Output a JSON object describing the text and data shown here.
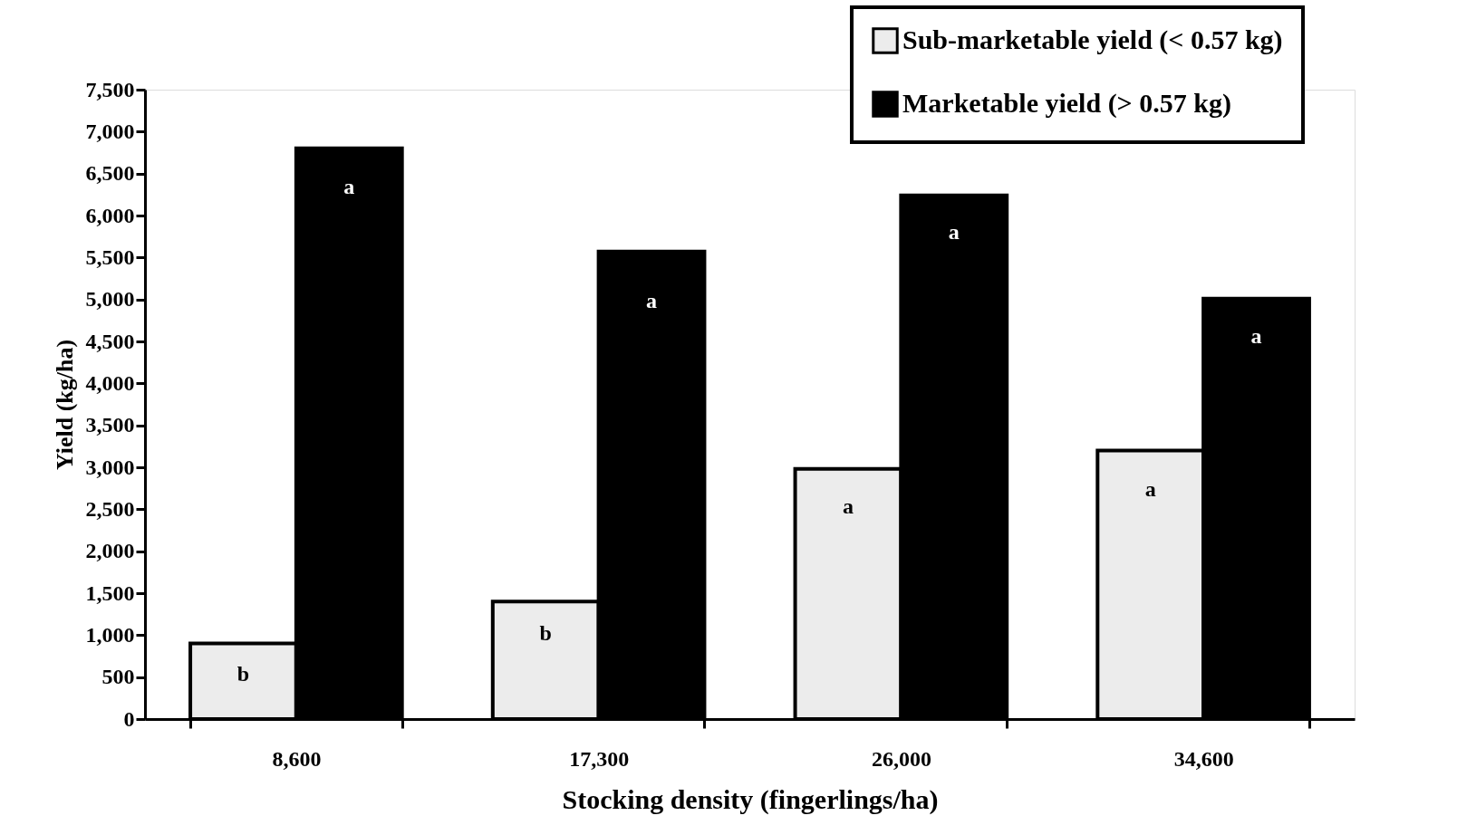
{
  "chart_data": {
    "type": "bar",
    "xlabel": "Stocking density (fingerlings/ha)",
    "ylabel": "Yield (kg/ha)",
    "categories": [
      "8,600",
      "17,300",
      "26,000",
      "34,600"
    ],
    "series": [
      {
        "name": "Sub-marketable yield (< 0.57 kg)",
        "color": "#ececec",
        "values": [
          900,
          1400,
          2980,
          3200
        ]
      },
      {
        "name": "Marketable yield (> 0.57 kg)",
        "color": "#000000",
        "values": [
          6800,
          5570,
          6240,
          5010
        ]
      }
    ],
    "ylim": [
      0,
      7500
    ],
    "yticks": [
      0,
      {
        "value": 500,
        "label": "500"
      },
      {
        "value": 1000,
        "label": "1,000"
      },
      {
        "value": 1500,
        "label": "1,500"
      },
      {
        "value": 2000,
        "label": "2,000"
      },
      {
        "value": 2500,
        "label": "2,500"
      },
      {
        "value": 3000,
        "label": "3,000"
      },
      {
        "value": 3500,
        "label": "3,500"
      },
      {
        "value": 4000,
        "label": "4,000"
      },
      {
        "value": 4500,
        "label": "4,500"
      },
      {
        "value": 5000,
        "label": "5,000"
      },
      {
        "value": 5500,
        "label": "5,500"
      },
      {
        "value": 6000,
        "label": "6,000"
      },
      {
        "value": 6500,
        "label": "6,500"
      },
      {
        "value": 7000,
        "label": "7,000"
      },
      {
        "value": 7500,
        "label": "7,500"
      }
    ],
    "grid": false,
    "legend": "top right",
    "annotations": [
      {
        "text": "b",
        "x": "8,600",
        "y": 530
      },
      {
        "text": "a",
        "x": "8,600",
        "y": 6330
      },
      {
        "text": "b",
        "x": "17,300",
        "y": 1010
      },
      {
        "text": "a",
        "x": "17,300",
        "y": 4970
      },
      {
        "text": "a",
        "x": "26,000",
        "y": 2530
      },
      {
        "text": "a",
        "x": "26,000",
        "y": 5790
      },
      {
        "text": "a",
        "x": "34,600",
        "y": 2730
      },
      {
        "text": "a",
        "x": "34,600",
        "y": 4550
      }
    ]
  }
}
